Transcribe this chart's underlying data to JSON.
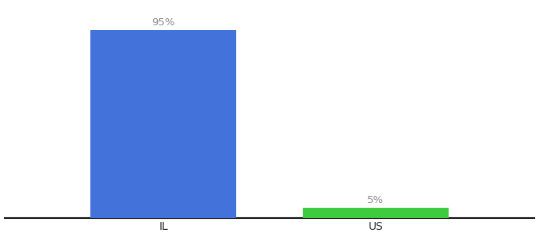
{
  "categories": [
    "IL",
    "US"
  ],
  "values": [
    95,
    5
  ],
  "bar_colors": [
    "#4472db",
    "#3ecc3e"
  ],
  "label_texts": [
    "95%",
    "5%"
  ],
  "background_color": "#ffffff",
  "ylim": [
    0,
    108
  ],
  "bar_width": 0.55,
  "figsize": [
    6.8,
    3.0
  ],
  "dpi": 100,
  "label_fontsize": 9.5,
  "tick_fontsize": 10,
  "label_color": "#888888",
  "axis_line_color": "#111111",
  "xlim": [
    -0.3,
    1.7
  ]
}
